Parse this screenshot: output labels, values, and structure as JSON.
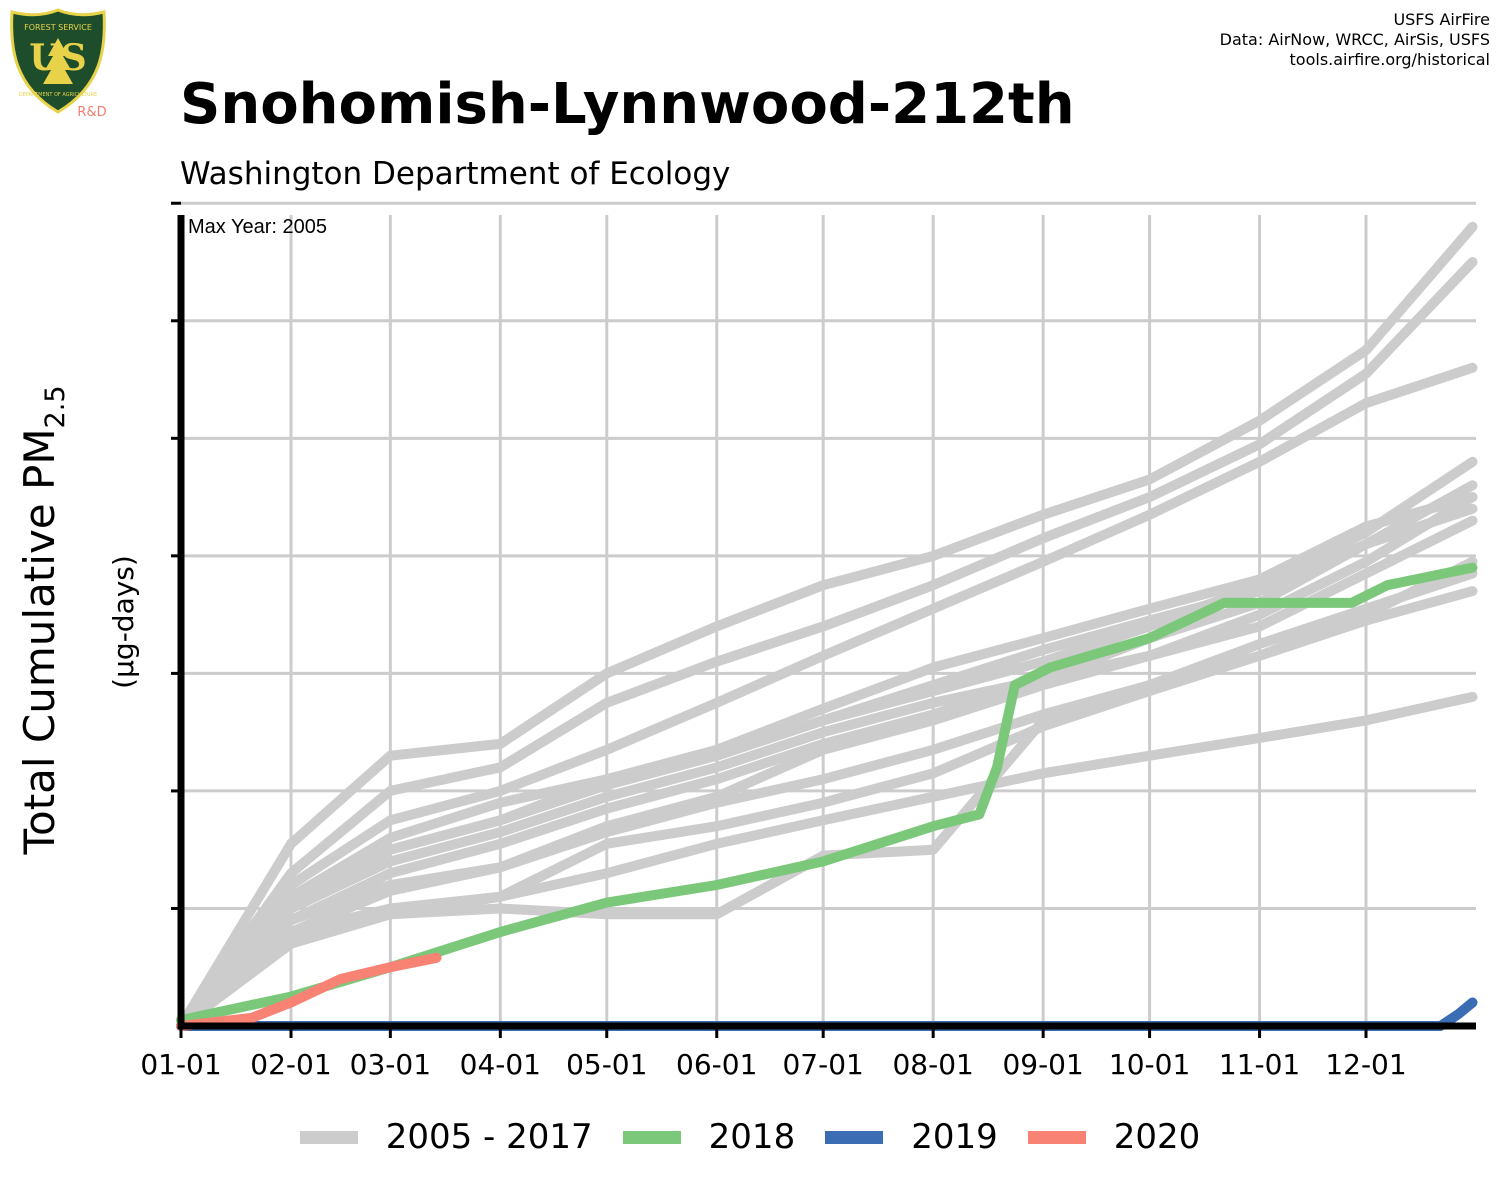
{
  "header": {
    "title": "Snohomish-Lynnwood-212th",
    "subtitle": "Washington Department of Ecology"
  },
  "credits": {
    "line1": "USFS AirFire",
    "line2": "Data: AirNow, WRCC, AirSis, USFS",
    "line3": "tools.airfire.org/historical"
  },
  "logo": {
    "text_top": "FOREST SERVICE",
    "text_mark": "US",
    "text_bottom": "DEPARTMENT OF AGRICULTURE",
    "text_rd": "R&D",
    "colors": {
      "shield": "#1e4d2b",
      "gold": "#e8d24a",
      "rd": "#f08070"
    }
  },
  "chart_data": {
    "type": "line",
    "title": "Snohomish-Lynnwood-212th",
    "subtitle": "Washington Department of Ecology",
    "annotation": "Max Year: 2005",
    "xlabel": "",
    "ylabel_main": "Total Cumulative PM",
    "ylabel_subscript": "2.5",
    "ylabel_units": "(µg-days)",
    "x_ticks": [
      "01-01",
      "02-01",
      "03-01",
      "04-01",
      "05-01",
      "06-01",
      "07-01",
      "08-01",
      "09-01",
      "10-01",
      "11-01",
      "12-01"
    ],
    "x_tick_days": [
      0,
      31,
      59,
      90,
      120,
      151,
      181,
      212,
      243,
      273,
      304,
      334
    ],
    "xlim": [
      0,
      365
    ],
    "y_ticks_unlabeled": [
      0,
      1,
      2,
      3,
      4,
      5,
      6,
      7
    ],
    "ylim": [
      0,
      6.9
    ],
    "grid": true,
    "legend_position": "bottom",
    "legend": [
      {
        "label": "2005 - 2017",
        "color": "#cccccc"
      },
      {
        "label": "2018",
        "color": "#7cc87b"
      },
      {
        "label": "2019",
        "color": "#3a6db3"
      },
      {
        "label": "2020",
        "color": "#f88374"
      }
    ],
    "series": [
      {
        "group": "2005 - 2017",
        "color": "#cccccc",
        "x": [
          0,
          31,
          59,
          90,
          120,
          151,
          181,
          212,
          243,
          273,
          304,
          334,
          364
        ],
        "y": [
          0,
          1.55,
          2.3,
          2.4,
          3.0,
          3.4,
          3.75,
          4.0,
          4.35,
          4.65,
          5.15,
          5.75,
          6.8
        ]
      },
      {
        "group": "2005 - 2017",
        "color": "#cccccc",
        "x": [
          0,
          31,
          59,
          90,
          120,
          151,
          181,
          212,
          243,
          273,
          304,
          334,
          364
        ],
        "y": [
          0,
          1.3,
          2.0,
          2.2,
          2.75,
          3.1,
          3.4,
          3.75,
          4.15,
          4.5,
          4.95,
          5.55,
          6.5
        ]
      },
      {
        "group": "2005 - 2017",
        "color": "#cccccc",
        "x": [
          0,
          31,
          59,
          90,
          120,
          151,
          181,
          212,
          243,
          273,
          304,
          334,
          364
        ],
        "y": [
          0,
          1.2,
          1.75,
          2.0,
          2.35,
          2.75,
          3.15,
          3.55,
          3.95,
          4.35,
          4.8,
          5.3,
          5.6
        ]
      },
      {
        "group": "2005 - 2017",
        "color": "#cccccc",
        "x": [
          0,
          31,
          59,
          90,
          120,
          151,
          181,
          212,
          243,
          273,
          304,
          334,
          364
        ],
        "y": [
          0,
          1.0,
          1.5,
          1.75,
          2.05,
          2.3,
          2.6,
          2.85,
          3.1,
          3.4,
          3.75,
          4.2,
          4.8
        ]
      },
      {
        "group": "2005 - 2017",
        "color": "#cccccc",
        "x": [
          0,
          31,
          59,
          90,
          120,
          151,
          181,
          212,
          243,
          273,
          304,
          334,
          364
        ],
        "y": [
          0,
          1.1,
          1.5,
          1.75,
          2.1,
          2.35,
          2.7,
          3.05,
          3.3,
          3.55,
          3.8,
          4.25,
          4.5
        ]
      },
      {
        "group": "2005 - 2017",
        "color": "#cccccc",
        "x": [
          0,
          31,
          59,
          90,
          120,
          151,
          181,
          212,
          243,
          273,
          304,
          334,
          364
        ],
        "y": [
          0,
          0.9,
          1.3,
          1.55,
          1.85,
          2.1,
          2.4,
          2.65,
          2.95,
          3.3,
          3.6,
          4.1,
          4.6
        ]
      },
      {
        "group": "2005 - 2017",
        "color": "#cccccc",
        "x": [
          0,
          31,
          59,
          90,
          120,
          151,
          181,
          212,
          243,
          273,
          304,
          334,
          364
        ],
        "y": [
          0,
          1.0,
          1.4,
          1.65,
          1.95,
          2.2,
          2.5,
          2.75,
          2.95,
          3.15,
          3.4,
          3.85,
          4.3
        ]
      },
      {
        "group": "2005 - 2017",
        "color": "#cccccc",
        "x": [
          0,
          31,
          59,
          90,
          120,
          151,
          181,
          212,
          243,
          273,
          304,
          334,
          364
        ],
        "y": [
          0,
          0.8,
          1.15,
          1.35,
          1.65,
          1.9,
          2.1,
          2.35,
          2.65,
          2.9,
          3.15,
          3.45,
          3.7
        ]
      },
      {
        "group": "2005 - 2017",
        "color": "#cccccc",
        "x": [
          0,
          31,
          59,
          90,
          120,
          151,
          181,
          212,
          243,
          273,
          304,
          334,
          364
        ],
        "y": [
          0,
          0.7,
          0.95,
          1.1,
          1.3,
          1.55,
          1.75,
          1.95,
          2.15,
          2.3,
          2.45,
          2.6,
          2.8
        ]
      },
      {
        "group": "2005 - 2017",
        "color": "#cccccc",
        "x": [
          0,
          31,
          59,
          90,
          120,
          151,
          181,
          212,
          243,
          273,
          304,
          334,
          364
        ],
        "y": [
          0,
          0.8,
          1.0,
          1.1,
          1.55,
          1.7,
          1.9,
          2.15,
          2.55,
          2.85,
          3.15,
          3.5,
          3.95
        ]
      },
      {
        "group": "2005 - 2017",
        "color": "#cccccc",
        "x": [
          0,
          31,
          59,
          90,
          120,
          151,
          181,
          212,
          243,
          273,
          304,
          334,
          364
        ],
        "y": [
          0,
          0.9,
          1.2,
          1.35,
          1.7,
          1.95,
          2.35,
          2.6,
          2.9,
          3.15,
          3.5,
          3.95,
          4.5
        ]
      },
      {
        "group": "2005 - 2017",
        "color": "#cccccc",
        "x": [
          0,
          31,
          59,
          90,
          120,
          151,
          181,
          212,
          243,
          273,
          304,
          334,
          364
        ],
        "y": [
          0,
          1.1,
          1.6,
          1.9,
          2.1,
          2.3,
          2.6,
          2.9,
          3.2,
          3.45,
          3.7,
          4.1,
          4.4
        ]
      },
      {
        "group": "2005 - 2017",
        "color": "#cccccc",
        "x": [
          0,
          31,
          59,
          90,
          120,
          151,
          181,
          212,
          243,
          273,
          304,
          334,
          364
        ],
        "y": [
          0,
          0.75,
          0.95,
          1.0,
          0.95,
          0.95,
          1.45,
          1.5,
          2.6,
          2.9,
          3.25,
          3.55,
          3.85
        ]
      },
      {
        "name": "2018",
        "color": "#7cc87b",
        "x": [
          0,
          31,
          59,
          90,
          120,
          151,
          181,
          212,
          225,
          230,
          235,
          245,
          273,
          294,
          300,
          330,
          340,
          364
        ],
        "y": [
          0.05,
          0.25,
          0.5,
          0.8,
          1.05,
          1.2,
          1.4,
          1.7,
          1.8,
          2.2,
          2.9,
          3.05,
          3.3,
          3.6,
          3.6,
          3.6,
          3.75,
          3.9
        ]
      },
      {
        "name": "2019",
        "color": "#3a6db3",
        "x": [
          0,
          355,
          360,
          364
        ],
        "y": [
          0,
          0,
          0.1,
          0.2
        ]
      },
      {
        "name": "2020",
        "color": "#f88374",
        "x": [
          0,
          20,
          31,
          45,
          59,
          72
        ],
        "y": [
          0,
          0.07,
          0.2,
          0.4,
          0.5,
          0.58
        ]
      }
    ]
  }
}
